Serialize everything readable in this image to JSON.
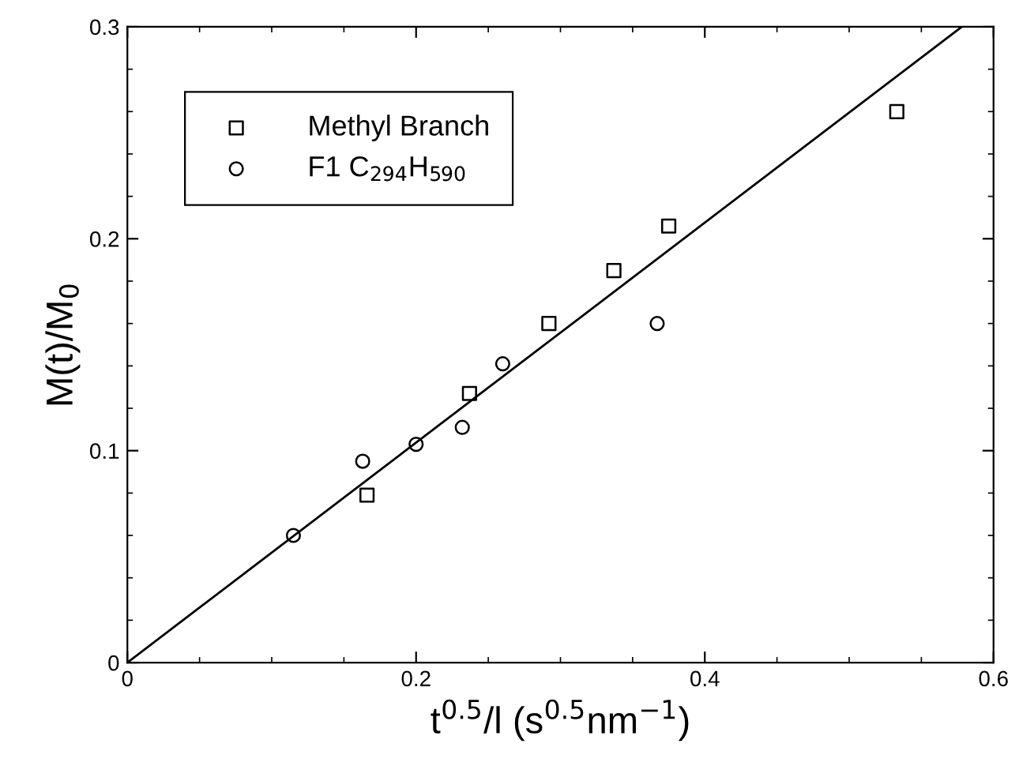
{
  "chart_data": {
    "type": "scatter",
    "xlabel": "t$^{0.5}$/l (s$^{0.5}$nm$^{−1}$)",
    "ylabel": "M(t)/M$_{0}$",
    "xlim": [
      0,
      0.6
    ],
    "ylim": [
      0,
      0.3
    ],
    "xticks": [
      0,
      0.2,
      0.4,
      0.6
    ],
    "yticks": [
      0,
      0.1,
      0.2,
      0.3
    ],
    "grid": false,
    "legend": "top left",
    "series": [
      {
        "name": "Methyl Branch",
        "color": "#000000",
        "marker": "square",
        "x": [
          0.166,
          0.237,
          0.292,
          0.337,
          0.375,
          0.533
        ],
        "values": [
          0.079,
          0.127,
          0.16,
          0.185,
          0.206,
          0.26
        ]
      },
      {
        "name": "F1 C$_{294}$H$_{590}$",
        "color": "#000000",
        "marker": "circle",
        "x": [
          0.115,
          0.163,
          0.2,
          0.232,
          0.26,
          0.367
        ],
        "values": [
          0.06,
          0.095,
          0.103,
          0.111,
          0.141,
          0.16
        ]
      },
      {
        "type": "line",
        "color": "#000000",
        "marker": "none",
        "line_style": "solid",
        "x": [
          0,
          0.578
        ],
        "values": [
          0,
          0.3
        ]
      }
    ]
  }
}
